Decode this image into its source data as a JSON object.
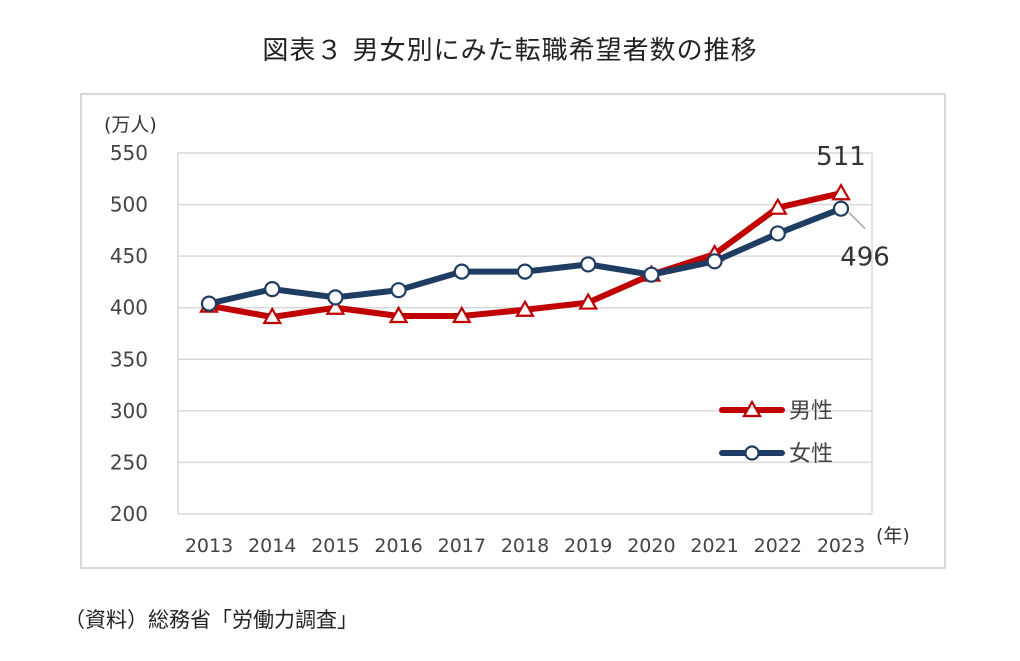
{
  "title": "図表３ 男女別にみた転職希望者数の推移",
  "source": "（資料）総務省「労働力調査」",
  "chart_data": {
    "type": "line",
    "title": "図表３ 男女別にみた転職希望者数の推移",
    "y_unit_label": "(万人)",
    "x_unit_label": "(年)",
    "ylim": [
      200,
      550
    ],
    "yticks": [
      "550",
      "500",
      "450",
      "400",
      "350",
      "300",
      "250",
      "200"
    ],
    "ytick_values": [
      550,
      500,
      450,
      400,
      350,
      300,
      250,
      200
    ],
    "categories": [
      "2013",
      "2014",
      "2015",
      "2016",
      "2017",
      "2018",
      "2019",
      "2020",
      "2021",
      "2022",
      "2023"
    ],
    "grid": true,
    "legend_position": "bottom-right",
    "series": [
      {
        "name": "男性",
        "color": "#c00000",
        "marker": "triangle",
        "values": [
          402,
          391,
          400,
          392,
          392,
          398,
          405,
          432,
          452,
          497,
          511
        ]
      },
      {
        "name": "女性",
        "color": "#1f3d63",
        "marker": "circle",
        "values": [
          404,
          418,
          410,
          417,
          435,
          435,
          442,
          432,
          445,
          472,
          496
        ]
      }
    ],
    "annotations": [
      {
        "text": "511",
        "series": "男性",
        "category": "2023"
      },
      {
        "text": "496",
        "series": "女性",
        "category": "2023"
      }
    ]
  }
}
